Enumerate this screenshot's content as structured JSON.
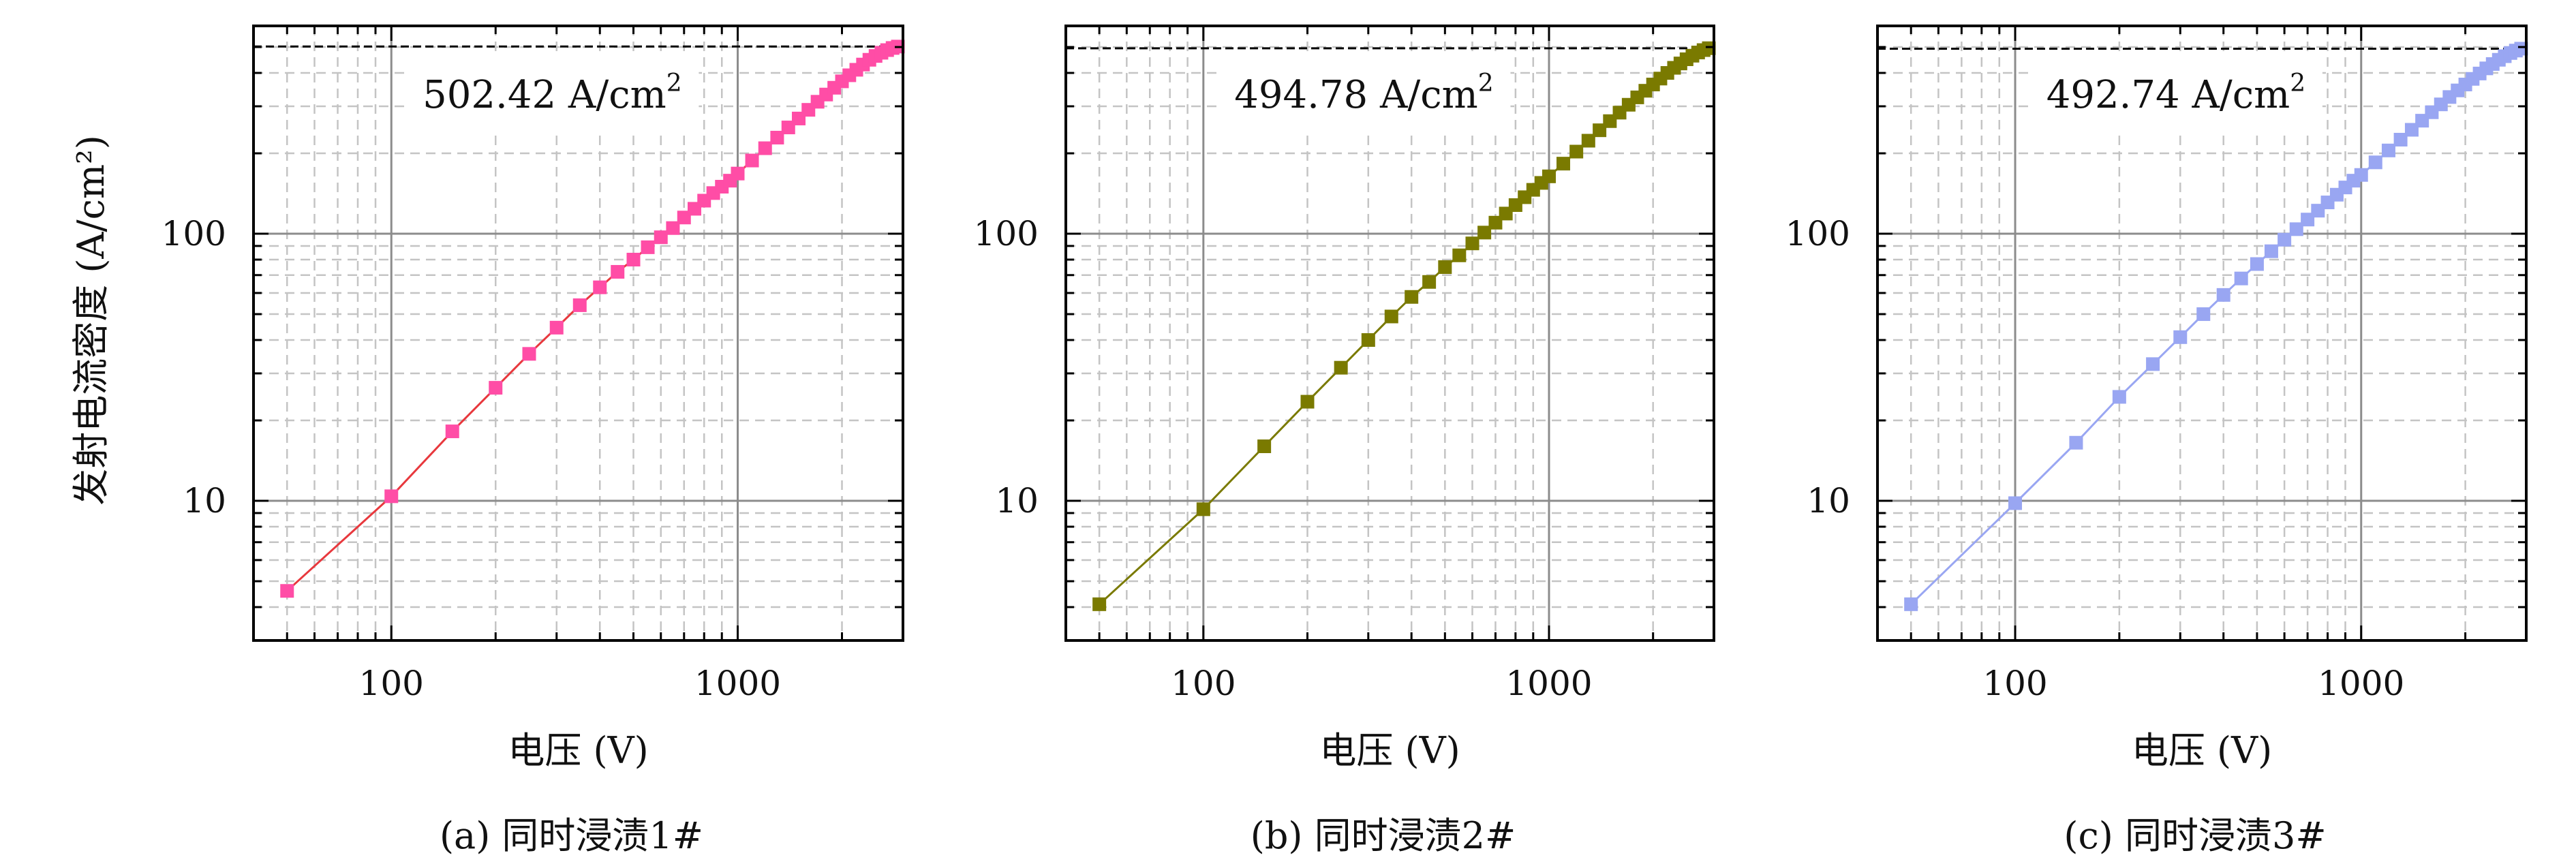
{
  "chart_data": [
    {
      "type": "line",
      "caption": "(a) 同时浸渍1#",
      "xlabel": "电压 (V)",
      "ylabel": "发射电流密度 (A/cm²)",
      "x_scale": "log",
      "y_scale": "log",
      "xlim": [
        40,
        3000
      ],
      "ylim": [
        3,
        600
      ],
      "x_ticks": [
        "100",
        "1000"
      ],
      "y_ticks": [
        "10",
        "100"
      ],
      "grid": true,
      "reference_line": 502.42,
      "annotation": {
        "value": "502.42",
        "unit": "A/cm",
        "sup": "2"
      },
      "series": [
        {
          "color": "#ff4da6",
          "line_color": "#e8383d",
          "marker": "square",
          "x": [
            50,
            100,
            150,
            200,
            250,
            300,
            350,
            400,
            450,
            500,
            550,
            600,
            650,
            700,
            750,
            800,
            850,
            900,
            950,
            1000,
            1100,
            1200,
            1300,
            1400,
            1500,
            1600,
            1700,
            1800,
            1900,
            2000,
            2100,
            2200,
            2300,
            2400,
            2500,
            2600,
            2700,
            2800,
            2900
          ],
          "y": [
            4.6,
            10.4,
            18.2,
            26.5,
            35.5,
            44.5,
            54,
            63,
            72,
            80,
            89,
            97,
            105,
            115,
            124,
            133,
            142,
            150,
            158,
            168,
            188,
            209,
            229,
            250,
            270,
            291,
            312,
            332,
            352,
            372,
            392,
            411,
            430,
            448,
            463,
            476,
            487,
            496,
            502
          ]
        }
      ]
    },
    {
      "type": "line",
      "caption": "(b) 同时浸渍2#",
      "xlabel": "电压 (V)",
      "ylabel": "",
      "x_scale": "log",
      "y_scale": "log",
      "xlim": [
        40,
        3000
      ],
      "ylim": [
        3,
        600
      ],
      "x_ticks": [
        "100",
        "1000"
      ],
      "y_ticks": [
        "10",
        "100"
      ],
      "grid": true,
      "reference_line": 494.78,
      "annotation": {
        "value": "494.78",
        "unit": "A/cm",
        "sup": "2"
      },
      "series": [
        {
          "color": "#7a7a00",
          "line_color": "#7a7a00",
          "marker": "square",
          "x": [
            50,
            100,
            150,
            200,
            250,
            300,
            350,
            400,
            450,
            500,
            550,
            600,
            650,
            700,
            750,
            800,
            850,
            900,
            950,
            1000,
            1100,
            1200,
            1300,
            1400,
            1500,
            1600,
            1700,
            1800,
            1900,
            2000,
            2100,
            2200,
            2300,
            2400,
            2500,
            2600,
            2700,
            2800,
            2900
          ],
          "y": [
            4.1,
            9.3,
            16,
            23.5,
            31.5,
            40,
            49,
            58,
            66,
            75,
            83,
            92,
            101,
            110,
            119,
            128,
            137,
            146,
            155,
            164,
            183,
            203,
            223,
            244,
            264,
            284,
            304,
            324,
            343,
            362,
            381,
            400,
            418,
            434,
            450,
            464,
            477,
            487,
            495
          ]
        }
      ]
    },
    {
      "type": "line",
      "caption": "(c) 同时浸渍3#",
      "xlabel": "电压 (V)",
      "ylabel": "",
      "x_scale": "log",
      "y_scale": "log",
      "xlim": [
        40,
        3000
      ],
      "ylim": [
        3,
        600
      ],
      "x_ticks": [
        "100",
        "1000"
      ],
      "y_ticks": [
        "10",
        "100"
      ],
      "grid": true,
      "reference_line": 492.74,
      "annotation": {
        "value": "492.74",
        "unit": "A/cm",
        "sup": "2"
      },
      "series": [
        {
          "color": "#99a6f2",
          "line_color": "#99a6f2",
          "marker": "square",
          "x": [
            50,
            100,
            150,
            200,
            250,
            300,
            350,
            400,
            450,
            500,
            550,
            600,
            650,
            700,
            750,
            800,
            850,
            900,
            950,
            1000,
            1100,
            1200,
            1300,
            1400,
            1500,
            1600,
            1700,
            1800,
            1900,
            2000,
            2100,
            2200,
            2300,
            2400,
            2500,
            2600,
            2700,
            2800,
            2900
          ],
          "y": [
            4.1,
            9.8,
            16.5,
            24.5,
            32.5,
            41,
            50,
            59,
            68,
            77,
            86,
            95,
            104,
            113,
            122,
            131,
            140,
            149,
            158,
            166,
            185,
            205,
            225,
            245,
            265,
            285,
            305,
            325,
            344,
            362,
            380,
            398,
            416,
            432,
            448,
            462,
            475,
            485,
            493
          ]
        }
      ]
    }
  ]
}
